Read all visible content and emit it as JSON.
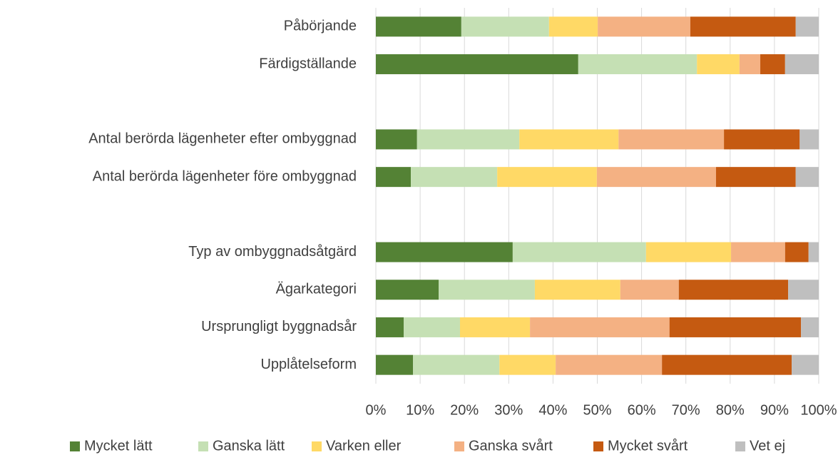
{
  "chart_data": {
    "type": "stacked_barh",
    "categories": [
      "Påbörjande",
      "Färdigställande",
      null,
      "Antal berörda lägenheter efter ombyggnad",
      "Antal berörda lägenheter före ombyggnad",
      null,
      "Typ av ombyggnadsåtgärd",
      "Ägarkategori",
      "Ursprungligt byggnadsår",
      "Upplåtelseform"
    ],
    "series": [
      {
        "name": "Mycket lätt",
        "color": "#548235",
        "values": [
          19.3,
          45.7,
          null,
          9.3,
          7.9,
          null,
          30.9,
          14.2,
          6.3,
          8.4
        ]
      },
      {
        "name": "Ganska lätt",
        "color": "#c5e0b4",
        "values": [
          19.8,
          26.8,
          null,
          23.1,
          19.5,
          null,
          30.1,
          21.7,
          12.7,
          19.5
        ]
      },
      {
        "name": "Varken eller",
        "color": "#ffd966",
        "values": [
          11.0,
          9.6,
          null,
          22.4,
          22.5,
          null,
          19.2,
          19.3,
          15.8,
          12.7
        ]
      },
      {
        "name": "Ganska svårt",
        "color": "#f4b183",
        "values": [
          20.9,
          4.7,
          null,
          23.8,
          26.9,
          null,
          12.2,
          13.2,
          31.5,
          24.0
        ]
      },
      {
        "name": "Mycket svårt",
        "color": "#c55a11",
        "values": [
          23.8,
          5.6,
          null,
          17.1,
          18.0,
          null,
          5.3,
          24.7,
          29.7,
          29.3
        ]
      },
      {
        "name": "Vet ej",
        "color": "#bfbfbf",
        "values": [
          5.2,
          7.6,
          null,
          4.3,
          5.2,
          null,
          2.3,
          6.9,
          4.0,
          6.1
        ]
      }
    ],
    "xlim": [
      0,
      100
    ],
    "xticks": [
      {
        "value": 0,
        "label": "0%"
      },
      {
        "value": 10,
        "label": "10%"
      },
      {
        "value": 20,
        "label": "20%"
      },
      {
        "value": 30,
        "label": "30%"
      },
      {
        "value": 40,
        "label": "40%"
      },
      {
        "value": 50,
        "label": "50%"
      },
      {
        "value": 60,
        "label": "60%"
      },
      {
        "value": 70,
        "label": "70%"
      },
      {
        "value": 80,
        "label": "80%"
      },
      {
        "value": 90,
        "label": "90%"
      },
      {
        "value": 100,
        "label": "100%"
      }
    ],
    "grid": true,
    "legend": "bottom"
  }
}
